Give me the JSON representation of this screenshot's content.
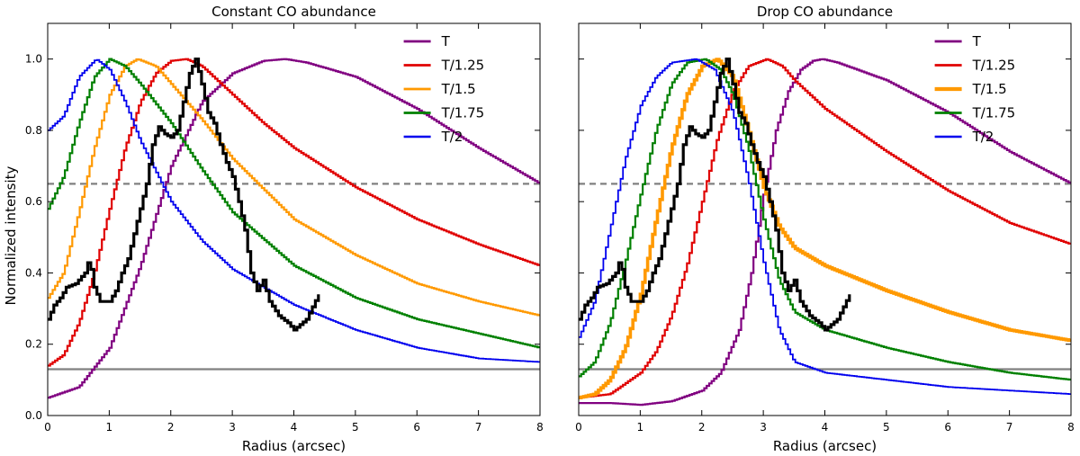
{
  "figure": {
    "ylabel": "Normalized intensity"
  },
  "chart_data": [
    {
      "type": "line",
      "title": "Constant CO abundance",
      "xlabel": "Radius (arcsec)",
      "xlim": [
        0,
        8
      ],
      "ylim": [
        0,
        1.1
      ],
      "x_ticks": [
        0,
        1,
        2,
        3,
        4,
        5,
        6,
        7,
        8
      ],
      "y_ticks": [
        "0.0",
        "0.2",
        "0.4",
        "0.6",
        "0.8",
        "1.0"
      ],
      "legend_position": "top-right",
      "reference_lines": [
        {
          "y": 0.65,
          "style": "dashed",
          "color": "#808080"
        },
        {
          "y": 0.13,
          "style": "solid",
          "color": "#808080"
        }
      ],
      "series": [
        {
          "name": "T",
          "color": "#800080",
          "width": 2.2,
          "x": [
            0,
            0.5,
            1,
            1.5,
            2,
            2.5,
            3,
            3.5,
            3.85,
            4.2,
            5,
            6,
            7,
            8
          ],
          "y": [
            0.05,
            0.08,
            0.19,
            0.42,
            0.7,
            0.88,
            0.96,
            0.995,
            1.0,
            0.99,
            0.95,
            0.86,
            0.75,
            0.65
          ]
        },
        {
          "name": "T/1.25",
          "color": "#e00000",
          "width": 2.2,
          "x": [
            0,
            0.25,
            0.5,
            0.75,
            1,
            1.25,
            1.5,
            1.75,
            2,
            2.25,
            2.5,
            3,
            3.5,
            4,
            5,
            6,
            7,
            8
          ],
          "y": [
            0.14,
            0.17,
            0.26,
            0.4,
            0.58,
            0.75,
            0.88,
            0.96,
            0.995,
            1.0,
            0.98,
            0.9,
            0.82,
            0.75,
            0.64,
            0.55,
            0.48,
            0.42
          ]
        },
        {
          "name": "T/1.5",
          "color": "#ff9900",
          "width": 2.2,
          "x": [
            0,
            0.25,
            0.5,
            0.75,
            1,
            1.25,
            1.45,
            1.75,
            2,
            2.5,
            3,
            4,
            5,
            6,
            7,
            8
          ],
          "y": [
            0.33,
            0.4,
            0.57,
            0.75,
            0.9,
            0.98,
            1.0,
            0.98,
            0.93,
            0.83,
            0.72,
            0.55,
            0.45,
            0.37,
            0.32,
            0.28
          ]
        },
        {
          "name": "T/1.75",
          "color": "#008000",
          "width": 2.2,
          "x": [
            0,
            0.25,
            0.5,
            0.75,
            1,
            1.25,
            1.5,
            2,
            2.5,
            3,
            4,
            5,
            6,
            7,
            8
          ],
          "y": [
            0.58,
            0.67,
            0.82,
            0.95,
            1.0,
            0.98,
            0.93,
            0.82,
            0.69,
            0.57,
            0.42,
            0.33,
            0.27,
            0.23,
            0.19
          ]
        },
        {
          "name": "T/2",
          "color": "#0000ee",
          "width": 1.8,
          "x": [
            0,
            0.25,
            0.5,
            0.78,
            1,
            1.25,
            1.5,
            2,
            2.5,
            3,
            4,
            5,
            6,
            7,
            8
          ],
          "y": [
            0.8,
            0.84,
            0.95,
            1.0,
            0.97,
            0.88,
            0.77,
            0.6,
            0.49,
            0.41,
            0.31,
            0.24,
            0.19,
            0.16,
            0.15
          ]
        },
        {
          "name": "",
          "color": "#000000",
          "width": 3.2,
          "x": [
            0,
            0.1,
            0.2,
            0.3,
            0.45,
            0.6,
            0.67,
            0.75,
            0.85,
            1.0,
            1.1,
            1.2,
            1.3,
            1.4,
            1.5,
            1.6,
            1.7,
            1.8,
            1.9,
            2.0,
            2.1,
            2.2,
            2.3,
            2.4,
            2.5,
            2.6,
            2.7,
            2.8,
            2.9,
            3.0,
            3.1,
            3.2,
            3.3,
            3.4,
            3.5,
            3.6,
            3.75,
            3.9,
            4.0,
            4.2,
            4.4
          ],
          "y": [
            0.27,
            0.31,
            0.33,
            0.36,
            0.37,
            0.4,
            0.44,
            0.36,
            0.32,
            0.32,
            0.35,
            0.4,
            0.44,
            0.51,
            0.58,
            0.65,
            0.76,
            0.81,
            0.79,
            0.78,
            0.8,
            0.88,
            0.96,
            1.0,
            0.93,
            0.85,
            0.82,
            0.76,
            0.71,
            0.67,
            0.6,
            0.52,
            0.4,
            0.35,
            0.38,
            0.32,
            0.28,
            0.26,
            0.24,
            0.27,
            0.34
          ]
        }
      ]
    },
    {
      "type": "line",
      "title": "Drop CO abundance",
      "xlabel": "Radius (arcsec)",
      "xlim": [
        0,
        8
      ],
      "ylim": [
        0,
        1.1
      ],
      "x_ticks": [
        0,
        1,
        2,
        3,
        4,
        5,
        6,
        7,
        8
      ],
      "y_ticks": [],
      "legend_position": "top-right",
      "reference_lines": [
        {
          "y": 0.65,
          "style": "dashed",
          "color": "#808080"
        },
        {
          "y": 0.13,
          "style": "solid",
          "color": "#808080"
        }
      ],
      "series": [
        {
          "name": "T",
          "color": "#800080",
          "width": 2.2,
          "x": [
            0,
            0.5,
            1,
            1.5,
            2,
            2.3,
            2.6,
            2.8,
            3.0,
            3.2,
            3.4,
            3.6,
            3.8,
            3.95,
            4.2,
            5,
            6,
            7,
            8
          ],
          "y": [
            0.035,
            0.035,
            0.03,
            0.04,
            0.07,
            0.12,
            0.24,
            0.4,
            0.62,
            0.8,
            0.91,
            0.97,
            0.995,
            1.0,
            0.99,
            0.94,
            0.85,
            0.74,
            0.65
          ]
        },
        {
          "name": "T/1.25",
          "color": "#e00000",
          "width": 2.2,
          "x": [
            0,
            0.5,
            1,
            1.25,
            1.5,
            1.75,
            2,
            2.25,
            2.5,
            2.75,
            3.05,
            3.3,
            3.5,
            4,
            5,
            6,
            7,
            8
          ],
          "y": [
            0.05,
            0.06,
            0.12,
            0.18,
            0.28,
            0.42,
            0.6,
            0.78,
            0.91,
            0.98,
            1.0,
            0.98,
            0.94,
            0.86,
            0.74,
            0.63,
            0.54,
            0.48
          ]
        },
        {
          "name": "T/1.5",
          "color": "#ff9900",
          "width": 3.6,
          "x": [
            0,
            0.25,
            0.5,
            0.75,
            1,
            1.25,
            1.5,
            1.75,
            2,
            2.25,
            2.5,
            2.75,
            3,
            3.25,
            3.5,
            4,
            5,
            6,
            7,
            8
          ],
          "y": [
            0.05,
            0.06,
            0.1,
            0.19,
            0.34,
            0.55,
            0.75,
            0.9,
            0.98,
            1.0,
            0.95,
            0.8,
            0.64,
            0.53,
            0.47,
            0.42,
            0.35,
            0.29,
            0.24,
            0.21
          ]
        },
        {
          "name": "T/1.75",
          "color": "#008000",
          "width": 2.2,
          "x": [
            0,
            0.25,
            0.5,
            0.75,
            1,
            1.25,
            1.5,
            1.75,
            2.05,
            2.3,
            2.5,
            2.75,
            3,
            3.25,
            3.5,
            4,
            5,
            6,
            7,
            8
          ],
          "y": [
            0.11,
            0.15,
            0.26,
            0.43,
            0.62,
            0.8,
            0.93,
            0.99,
            1.0,
            0.97,
            0.9,
            0.75,
            0.55,
            0.38,
            0.29,
            0.24,
            0.19,
            0.15,
            0.12,
            0.1
          ]
        },
        {
          "name": "T/2",
          "color": "#0000ee",
          "width": 1.8,
          "x": [
            0,
            0.25,
            0.5,
            0.75,
            1,
            1.25,
            1.5,
            1.9,
            2.2,
            2.5,
            2.75,
            3,
            3.25,
            3.5,
            4,
            5,
            6,
            7,
            8
          ],
          "y": [
            0.22,
            0.32,
            0.52,
            0.72,
            0.87,
            0.95,
            0.99,
            1.0,
            0.97,
            0.85,
            0.66,
            0.43,
            0.24,
            0.15,
            0.12,
            0.1,
            0.08,
            0.07,
            0.06
          ]
        },
        {
          "name": "",
          "color": "#000000",
          "width": 3.2,
          "x": [
            0,
            0.1,
            0.2,
            0.3,
            0.45,
            0.6,
            0.67,
            0.75,
            0.85,
            1.0,
            1.1,
            1.2,
            1.3,
            1.4,
            1.5,
            1.6,
            1.7,
            1.8,
            1.9,
            2.0,
            2.1,
            2.2,
            2.3,
            2.4,
            2.5,
            2.6,
            2.7,
            2.8,
            2.9,
            3.0,
            3.1,
            3.2,
            3.3,
            3.4,
            3.5,
            3.6,
            3.75,
            3.9,
            4.0,
            4.2,
            4.4
          ],
          "y": [
            0.27,
            0.31,
            0.33,
            0.36,
            0.37,
            0.4,
            0.44,
            0.36,
            0.32,
            0.32,
            0.35,
            0.4,
            0.44,
            0.51,
            0.58,
            0.65,
            0.76,
            0.81,
            0.79,
            0.78,
            0.8,
            0.88,
            0.96,
            1.0,
            0.93,
            0.85,
            0.82,
            0.76,
            0.71,
            0.67,
            0.6,
            0.52,
            0.4,
            0.35,
            0.38,
            0.32,
            0.28,
            0.26,
            0.24,
            0.27,
            0.34
          ]
        }
      ]
    }
  ]
}
